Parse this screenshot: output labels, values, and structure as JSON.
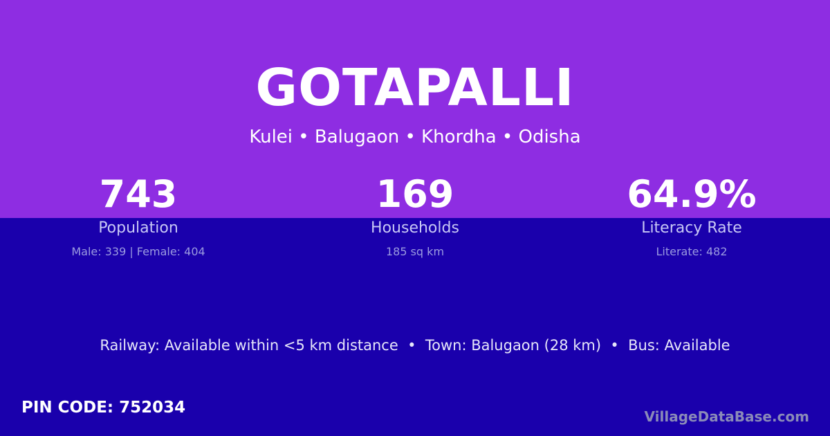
{
  "village": {
    "name": "GOTAPALLI",
    "location": "Kulei • Balugaon • Khordha • Odisha"
  },
  "stats": [
    {
      "value": "743",
      "label": "Population",
      "detail": "Male: 339 | Female: 404"
    },
    {
      "value": "169",
      "label": "Households",
      "detail": "185 sq km"
    },
    {
      "value": "64.9%",
      "label": "Literacy Rate",
      "detail": "Literate: 482"
    }
  ],
  "transport": "Railway: Available within <5 km distance  •  Town: Balugaon (28 km)  •  Bus: Available",
  "pin_code": "PIN CODE: 752034",
  "brand": "VillageDataBase.com",
  "colors": {
    "top": "#8e2de2",
    "bottom": "#1a00ac"
  }
}
